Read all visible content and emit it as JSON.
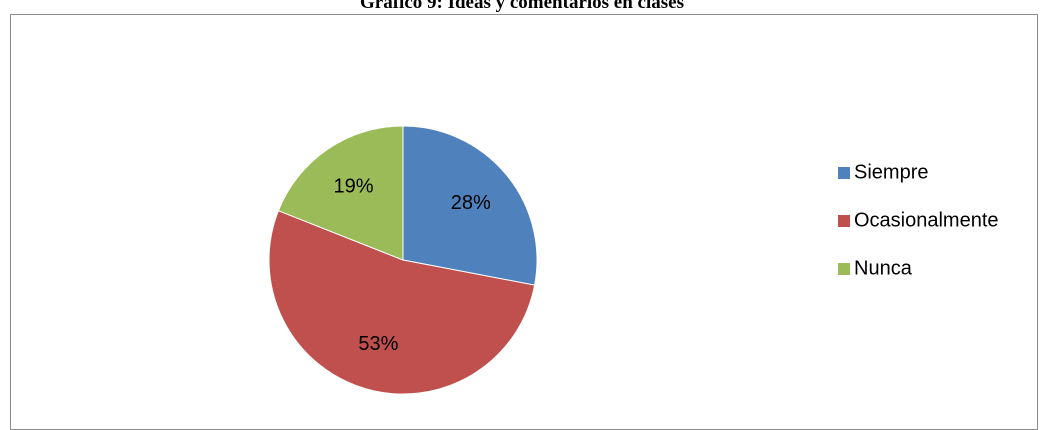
{
  "chart_data": {
    "type": "pie",
    "title": "Gráfico 9: Ideas y comentarios en clases",
    "categories": [
      "Siempre",
      "Ocasionalmente",
      "Nunca"
    ],
    "values": [
      28,
      53,
      19
    ],
    "value_labels": [
      "28%",
      "53%",
      "19%"
    ],
    "colors": [
      "#4f81bd",
      "#c0504d",
      "#9bbb59"
    ],
    "legend_position": "right"
  }
}
